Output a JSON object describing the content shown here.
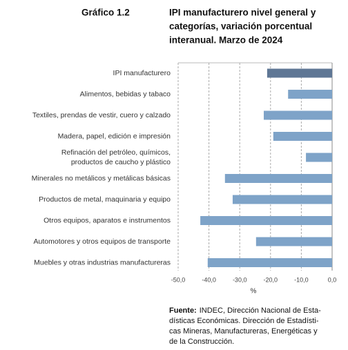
{
  "chart_data": {
    "type": "bar",
    "orientation": "horizontal",
    "label": "Gráfico 1.2",
    "title": [
      "IPI manufacturero nivel general y",
      "categorías, variación porcentual",
      "interanual. Marzo de 2024"
    ],
    "categories": [
      "IPI manufacturero",
      "Alimentos, bebidas y tabaco",
      "Textiles, prendas de vestir, cuero y calzado",
      "Madera, papel, edición e impresión",
      [
        "Refinación del petróleo, químicos,",
        "productos de caucho y plástico"
      ],
      "Minerales no metálicos y metálicas básicas",
      "Productos de metal, maquinaria y equipo",
      "Otros equipos, aparatos e instrumentos",
      "Automotores y otros equipos de transporte",
      "Muebles y otras industrias manufactureras"
    ],
    "values": [
      -21.1,
      -14.3,
      -22.2,
      -19.1,
      -8.5,
      -34.8,
      -32.3,
      -42.8,
      -24.7,
      -40.4
    ],
    "colors": [
      "#5f7795",
      "#7ea3c8",
      "#7ea3c8",
      "#7ea3c8",
      "#7ea3c8",
      "#7ea3c8",
      "#7ea3c8",
      "#7ea3c8",
      "#7ea3c8",
      "#7ea3c8"
    ],
    "xlim": [
      -50,
      0
    ],
    "xticks": [
      {
        "value": -50,
        "label": "-50,0"
      },
      {
        "value": -40,
        "label": "-40,0"
      },
      {
        "value": -30,
        "label": "-30,0"
      },
      {
        "value": -20,
        "label": "-20,0"
      },
      {
        "value": -10,
        "label": "-10,0"
      },
      {
        "value": 0,
        "label": "0,0"
      }
    ],
    "xlabel": "%",
    "grid": true,
    "source": {
      "label": "Fuente:",
      "lines": [
        "INDEC, Dirección Nacional de Esta-",
        "dísticas Económicas. Dirección de Estadísti-",
        "cas Mineras, Manufactureras, Energéticas y",
        "de la Construcción."
      ]
    }
  }
}
